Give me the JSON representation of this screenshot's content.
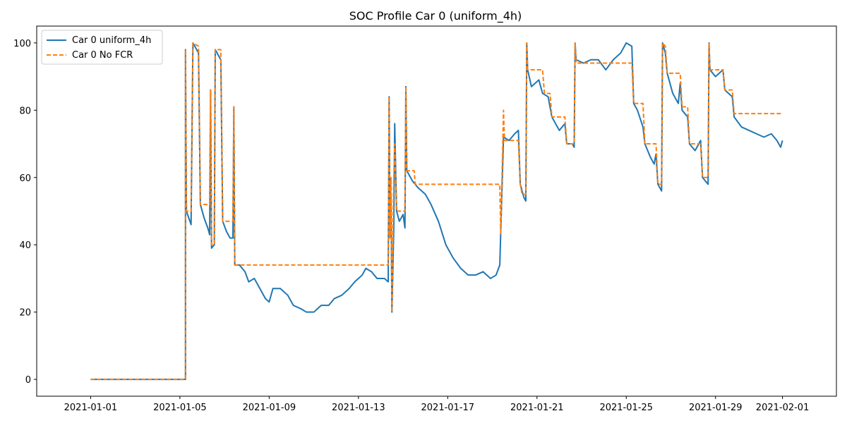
{
  "chart_data": {
    "type": "line",
    "title": "SOC Profile Car 0 (uniform_4h)",
    "xlabel": "",
    "ylabel": "",
    "x_start": "2021-01-01",
    "x_end": "2021-02-01",
    "xlim": [
      "2020-12-29T14:00",
      "2021-02-03T10:00"
    ],
    "ylim": [
      -5,
      105
    ],
    "x_ticks": [
      "2021-01-01",
      "2021-01-05",
      "2021-01-09",
      "2021-01-13",
      "2021-01-17",
      "2021-01-21",
      "2021-01-25",
      "2021-01-29",
      "2021-02-01"
    ],
    "y_ticks": [
      0,
      20,
      40,
      60,
      80,
      100
    ],
    "grid": false,
    "legend_position": "upper-left",
    "series": [
      {
        "name": "Car 0 uniform_4h",
        "color": "#1f77b4",
        "style": "solid",
        "points": [
          [
            "2021-01-01T00:00",
            0
          ],
          [
            "2021-01-05T06:00",
            0
          ],
          [
            "2021-01-05T06:00",
            98
          ],
          [
            "2021-01-05T07:00",
            50
          ],
          [
            "2021-01-05T12:00",
            46
          ],
          [
            "2021-01-05T14:00",
            100
          ],
          [
            "2021-01-05T20:00",
            97
          ],
          [
            "2021-01-05T22:00",
            52
          ],
          [
            "2021-01-06T02:00",
            48
          ],
          [
            "2021-01-06T06:00",
            45
          ],
          [
            "2021-01-06T08:00",
            43
          ],
          [
            "2021-01-06T09:00",
            86
          ],
          [
            "2021-01-06T10:00",
            39
          ],
          [
            "2021-01-06T13:00",
            40
          ],
          [
            "2021-01-06T14:00",
            98
          ],
          [
            "2021-01-06T20:00",
            95
          ],
          [
            "2021-01-06T22:00",
            47
          ],
          [
            "2021-01-07T02:00",
            44
          ],
          [
            "2021-01-07T06:00",
            42
          ],
          [
            "2021-01-07T09:00",
            42
          ],
          [
            "2021-01-07T10:00",
            81
          ],
          [
            "2021-01-07T11:00",
            34
          ],
          [
            "2021-01-07T16:00",
            34
          ],
          [
            "2021-01-07T22:00",
            32
          ],
          [
            "2021-01-08T02:00",
            29
          ],
          [
            "2021-01-08T08:00",
            30
          ],
          [
            "2021-01-08T14:00",
            27
          ],
          [
            "2021-01-08T20:00",
            24
          ],
          [
            "2021-01-09T00:00",
            23
          ],
          [
            "2021-01-09T04:00",
            27
          ],
          [
            "2021-01-09T12:00",
            27
          ],
          [
            "2021-01-09T20:00",
            25
          ],
          [
            "2021-01-10T02:00",
            22
          ],
          [
            "2021-01-10T10:00",
            21
          ],
          [
            "2021-01-10T16:00",
            20
          ],
          [
            "2021-01-11T00:00",
            20
          ],
          [
            "2021-01-11T08:00",
            22
          ],
          [
            "2021-01-11T16:00",
            22
          ],
          [
            "2021-01-11T22:00",
            24
          ],
          [
            "2021-01-12T06:00",
            25
          ],
          [
            "2021-01-12T14:00",
            27
          ],
          [
            "2021-01-12T20:00",
            29
          ],
          [
            "2021-01-13T04:00",
            31
          ],
          [
            "2021-01-13T08:00",
            33
          ],
          [
            "2021-01-13T14:00",
            32
          ],
          [
            "2021-01-13T20:00",
            30
          ],
          [
            "2021-01-14T04:00",
            30
          ],
          [
            "2021-01-14T08:00",
            29
          ],
          [
            "2021-01-14T09:00",
            84
          ],
          [
            "2021-01-14T10:00",
            42
          ],
          [
            "2021-01-14T11:00",
            55
          ],
          [
            "2021-01-14T12:00",
            20
          ],
          [
            "2021-01-14T14:00",
            45
          ],
          [
            "2021-01-14T15:00",
            76
          ],
          [
            "2021-01-14T17:00",
            50
          ],
          [
            "2021-01-14T20:00",
            47
          ],
          [
            "2021-01-15T00:00",
            49
          ],
          [
            "2021-01-15T02:00",
            45
          ],
          [
            "2021-01-15T03:00",
            87
          ],
          [
            "2021-01-15T04:00",
            62
          ],
          [
            "2021-01-15T10:00",
            59
          ],
          [
            "2021-01-15T16:00",
            57
          ],
          [
            "2021-01-16T00:00",
            55
          ],
          [
            "2021-01-16T06:00",
            52
          ],
          [
            "2021-01-16T14:00",
            47
          ],
          [
            "2021-01-16T22:00",
            40
          ],
          [
            "2021-01-17T06:00",
            36
          ],
          [
            "2021-01-17T14:00",
            33
          ],
          [
            "2021-01-17T22:00",
            31
          ],
          [
            "2021-01-18T06:00",
            31
          ],
          [
            "2021-01-18T14:00",
            32
          ],
          [
            "2021-01-18T22:00",
            30
          ],
          [
            "2021-01-19T04:00",
            31
          ],
          [
            "2021-01-19T08:00",
            34
          ],
          [
            "2021-01-19T12:00",
            72
          ],
          [
            "2021-01-19T18:00",
            71
          ],
          [
            "2021-01-20T00:00",
            73
          ],
          [
            "2021-01-20T04:00",
            74
          ],
          [
            "2021-01-20T06:00",
            58
          ],
          [
            "2021-01-20T10:00",
            54
          ],
          [
            "2021-01-20T12:00",
            53
          ],
          [
            "2021-01-20T13:00",
            100
          ],
          [
            "2021-01-20T14:00",
            92
          ],
          [
            "2021-01-20T18:00",
            87
          ],
          [
            "2021-01-21T02:00",
            89
          ],
          [
            "2021-01-21T06:00",
            85
          ],
          [
            "2021-01-21T12:00",
            84
          ],
          [
            "2021-01-21T16:00",
            78
          ],
          [
            "2021-01-22T00:00",
            74
          ],
          [
            "2021-01-22T06:00",
            76
          ],
          [
            "2021-01-22T08:00",
            70
          ],
          [
            "2021-01-22T14:00",
            70
          ],
          [
            "2021-01-22T16:00",
            69
          ],
          [
            "2021-01-22T17:00",
            100
          ],
          [
            "2021-01-22T18:00",
            95
          ],
          [
            "2021-01-23T02:00",
            94
          ],
          [
            "2021-01-23T10:00",
            95
          ],
          [
            "2021-01-23T18:00",
            95
          ],
          [
            "2021-01-24T02:00",
            92
          ],
          [
            "2021-01-24T10:00",
            95
          ],
          [
            "2021-01-24T18:00",
            97
          ],
          [
            "2021-01-25T00:00",
            100
          ],
          [
            "2021-01-25T06:00",
            99
          ],
          [
            "2021-01-25T08:00",
            82
          ],
          [
            "2021-01-25T12:00",
            80
          ],
          [
            "2021-01-25T18:00",
            75
          ],
          [
            "2021-01-25T20:00",
            70
          ],
          [
            "2021-01-26T02:00",
            66
          ],
          [
            "2021-01-26T06:00",
            64
          ],
          [
            "2021-01-26T08:00",
            67
          ],
          [
            "2021-01-26T10:00",
            58
          ],
          [
            "2021-01-26T14:00",
            56
          ],
          [
            "2021-01-26T15:00",
            100
          ],
          [
            "2021-01-26T18:00",
            97
          ],
          [
            "2021-01-26T20:00",
            91
          ],
          [
            "2021-01-27T02:00",
            85
          ],
          [
            "2021-01-27T08:00",
            82
          ],
          [
            "2021-01-27T10:00",
            88
          ],
          [
            "2021-01-27T12:00",
            80
          ],
          [
            "2021-01-27T18:00",
            78
          ],
          [
            "2021-01-27T20:00",
            70
          ],
          [
            "2021-01-28T02:00",
            68
          ],
          [
            "2021-01-28T08:00",
            71
          ],
          [
            "2021-01-28T10:00",
            60
          ],
          [
            "2021-01-28T16:00",
            58
          ],
          [
            "2021-01-28T17:00",
            100
          ],
          [
            "2021-01-28T18:00",
            92
          ],
          [
            "2021-01-29T00:00",
            90
          ],
          [
            "2021-01-29T08:00",
            92
          ],
          [
            "2021-01-29T10:00",
            86
          ],
          [
            "2021-01-29T18:00",
            84
          ],
          [
            "2021-01-29T20:00",
            78
          ],
          [
            "2021-01-30T04:00",
            75
          ],
          [
            "2021-01-30T12:00",
            74
          ],
          [
            "2021-01-30T20:00",
            73
          ],
          [
            "2021-01-31T04:00",
            72
          ],
          [
            "2021-01-31T12:00",
            73
          ],
          [
            "2021-01-31T18:00",
            71
          ],
          [
            "2021-01-31T22:00",
            69
          ],
          [
            "2021-02-01T00:00",
            71
          ]
        ]
      },
      {
        "name": "Car 0 No FCR",
        "color": "#ff7f0e",
        "style": "dashed",
        "points": [
          [
            "2021-01-01T00:00",
            0
          ],
          [
            "2021-01-05T06:00",
            0
          ],
          [
            "2021-01-05T06:00",
            98
          ],
          [
            "2021-01-05T07:00",
            50
          ],
          [
            "2021-01-05T12:00",
            50
          ],
          [
            "2021-01-05T14:00",
            100
          ],
          [
            "2021-01-05T20:00",
            99
          ],
          [
            "2021-01-05T22:00",
            52
          ],
          [
            "2021-01-06T08:00",
            52
          ],
          [
            "2021-01-06T09:00",
            86
          ],
          [
            "2021-01-06T10:00",
            40
          ],
          [
            "2021-01-06T13:00",
            40
          ],
          [
            "2021-01-06T14:00",
            98
          ],
          [
            "2021-01-06T20:00",
            98
          ],
          [
            "2021-01-06T22:00",
            47
          ],
          [
            "2021-01-07T09:00",
            47
          ],
          [
            "2021-01-07T10:00",
            81
          ],
          [
            "2021-01-07T11:00",
            34
          ],
          [
            "2021-01-14T08:00",
            34
          ],
          [
            "2021-01-14T09:00",
            84
          ],
          [
            "2021-01-14T10:00",
            42
          ],
          [
            "2021-01-14T11:00",
            60
          ],
          [
            "2021-01-14T12:00",
            20
          ],
          [
            "2021-01-14T14:00",
            60
          ],
          [
            "2021-01-14T15:00",
            70
          ],
          [
            "2021-01-14T17:00",
            50
          ],
          [
            "2021-01-15T02:00",
            50
          ],
          [
            "2021-01-15T03:00",
            87
          ],
          [
            "2021-01-15T04:00",
            62
          ],
          [
            "2021-01-15T12:00",
            62
          ],
          [
            "2021-01-15T13:00",
            58
          ],
          [
            "2021-01-19T08:00",
            58
          ],
          [
            "2021-01-19T09:00",
            43
          ],
          [
            "2021-01-19T12:00",
            80
          ],
          [
            "2021-01-19T13:00",
            71
          ],
          [
            "2021-01-20T04:00",
            71
          ],
          [
            "2021-01-20T06:00",
            58
          ],
          [
            "2021-01-20T08:00",
            55
          ],
          [
            "2021-01-20T12:00",
            55
          ],
          [
            "2021-01-20T13:00",
            100
          ],
          [
            "2021-01-20T14:00",
            92
          ],
          [
            "2021-01-21T06:00",
            92
          ],
          [
            "2021-01-21T08:00",
            85
          ],
          [
            "2021-01-21T14:00",
            85
          ],
          [
            "2021-01-21T16:00",
            78
          ],
          [
            "2021-01-22T06:00",
            78
          ],
          [
            "2021-01-22T08:00",
            70
          ],
          [
            "2021-01-22T16:00",
            70
          ],
          [
            "2021-01-22T17:00",
            100
          ],
          [
            "2021-01-22T18:00",
            94
          ],
          [
            "2021-01-25T06:00",
            94
          ],
          [
            "2021-01-25T08:00",
            82
          ],
          [
            "2021-01-25T18:00",
            82
          ],
          [
            "2021-01-25T20:00",
            70
          ],
          [
            "2021-01-26T08:00",
            70
          ],
          [
            "2021-01-26T10:00",
            58
          ],
          [
            "2021-01-26T14:00",
            58
          ],
          [
            "2021-01-26T15:00",
            100
          ],
          [
            "2021-01-26T18:00",
            99
          ],
          [
            "2021-01-26T20:00",
            91
          ],
          [
            "2021-01-27T10:00",
            91
          ],
          [
            "2021-01-27T12:00",
            81
          ],
          [
            "2021-01-27T18:00",
            81
          ],
          [
            "2021-01-27T20:00",
            70
          ],
          [
            "2021-01-28T08:00",
            70
          ],
          [
            "2021-01-28T10:00",
            60
          ],
          [
            "2021-01-28T16:00",
            60
          ],
          [
            "2021-01-28T17:00",
            100
          ],
          [
            "2021-01-28T18:00",
            92
          ],
          [
            "2021-01-29T08:00",
            92
          ],
          [
            "2021-01-29T10:00",
            86
          ],
          [
            "2021-01-29T18:00",
            86
          ],
          [
            "2021-01-29T20:00",
            79
          ],
          [
            "2021-02-01T00:00",
            79
          ]
        ]
      }
    ]
  }
}
